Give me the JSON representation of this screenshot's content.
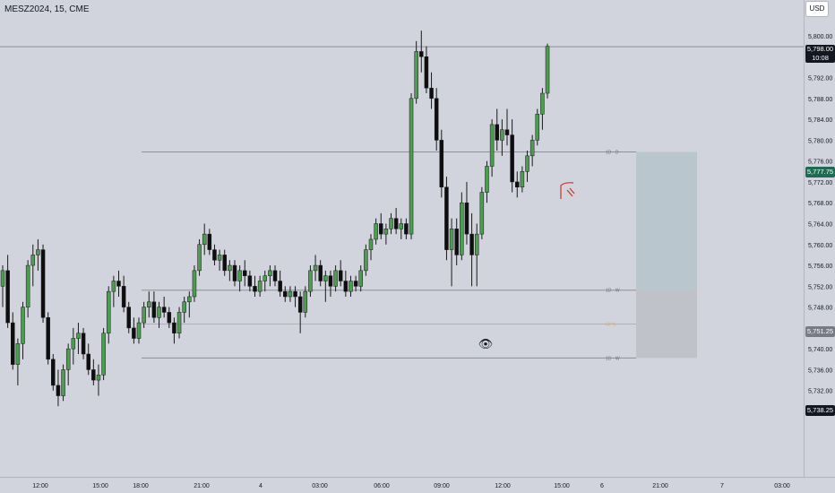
{
  "symbol_title": "MESZ2024, 15, CME",
  "currency_button": "USD",
  "price_axis": {
    "ticks": [
      "5,800.00",
      "5,796.00",
      "5,792.00",
      "5,788.00",
      "5,784.00",
      "5,780.00",
      "5,776.00",
      "5,772.00",
      "5,768.00",
      "5,764.00",
      "5,760.00",
      "5,756.00",
      "5,752.00",
      "5,748.00",
      "5,744.00",
      "5,740.00",
      "5,736.00",
      "5,732.00",
      "5,728.00"
    ]
  },
  "time_axis": {
    "labels": [
      "12:00",
      "15:00",
      "18:00",
      "21:00",
      "4",
      "03:00",
      "06:00",
      "09:00",
      "12:00",
      "15:00",
      "6",
      "21:00",
      "7",
      "03:00"
    ]
  },
  "price_tags": {
    "last_price": "5,798.00",
    "countdown": "10:08",
    "level_high": "5,777.75",
    "level_mid": "5,751.25",
    "level_low": "5,738.25"
  },
  "level_labels": {
    "high": "1D · D",
    "mid": "1D · W",
    "half": "50 %",
    "low": "1D · W"
  },
  "annotations": {
    "eye": "👁"
  },
  "colors": {
    "background": "#d1d4dc",
    "bull": "#4e9b52",
    "bear": "#0e0e10",
    "wick": "#1a1a1a",
    "zone_upper": "#b9c6ce",
    "zone_lower": "#c0c2c9",
    "half_line": "#e6a84f",
    "level_line": "#8d9099"
  },
  "chart_data": {
    "type": "candlestick",
    "x": [
      "12:00",
      "15:00",
      "18:00",
      "21:00",
      "4",
      "03:00",
      "06:00",
      "09:00",
      "12:00",
      "15:00",
      "6",
      "21:00",
      "7",
      "03:00"
    ],
    "ylim": [
      5726,
      5802
    ],
    "last_price": 5798.0,
    "horizontal_levels": [
      5777.75,
      5751.25,
      5744.75,
      5738.25
    ],
    "zone": {
      "top": 5777.75,
      "mid": 5751.25,
      "bottom": 5738.25
    },
    "series": [
      {
        "name": "MESZ2024",
        "ohlc": [
          [
            5752,
            5756,
            5748,
            5755
          ],
          [
            5755,
            5758,
            5744,
            5745
          ],
          [
            5745,
            5747,
            5736,
            5737
          ],
          [
            5737,
            5742,
            5733,
            5741
          ],
          [
            5741,
            5749,
            5738,
            5748
          ],
          [
            5748,
            5757,
            5746,
            5756
          ],
          [
            5756,
            5760,
            5752,
            5758
          ],
          [
            5758,
            5761,
            5755,
            5759
          ],
          [
            5759,
            5760,
            5745,
            5746
          ],
          [
            5746,
            5747,
            5737,
            5738
          ],
          [
            5738,
            5739,
            5732,
            5733
          ],
          [
            5733,
            5736,
            5729,
            5731
          ],
          [
            5731,
            5737,
            5730,
            5736
          ],
          [
            5736,
            5741,
            5733,
            5740
          ],
          [
            5740,
            5744,
            5737,
            5742
          ],
          [
            5742,
            5745,
            5739,
            5743
          ],
          [
            5743,
            5744,
            5738,
            5739
          ],
          [
            5739,
            5741,
            5735,
            5736
          ],
          [
            5736,
            5738,
            5733,
            5734
          ],
          [
            5734,
            5737,
            5731,
            5735
          ],
          [
            5735,
            5744,
            5734,
            5743
          ],
          [
            5743,
            5752,
            5741,
            5751
          ],
          [
            5751,
            5754,
            5748,
            5753
          ],
          [
            5753,
            5755,
            5750,
            5752
          ],
          [
            5752,
            5754,
            5747,
            5748
          ],
          [
            5748,
            5749,
            5743,
            5744
          ],
          [
            5744,
            5746,
            5741,
            5742
          ],
          [
            5742,
            5746,
            5741,
            5745
          ],
          [
            5745,
            5749,
            5744,
            5748
          ],
          [
            5748,
            5751,
            5746,
            5749
          ],
          [
            5749,
            5751,
            5745,
            5746
          ],
          [
            5746,
            5749,
            5744,
            5748
          ],
          [
            5748,
            5750,
            5746,
            5747
          ],
          [
            5747,
            5748,
            5744,
            5745
          ],
          [
            5745,
            5746,
            5741,
            5743
          ],
          [
            5743,
            5748,
            5742,
            5747
          ],
          [
            5747,
            5750,
            5745,
            5749
          ],
          [
            5749,
            5751,
            5746,
            5750
          ],
          [
            5750,
            5756,
            5749,
            5755
          ],
          [
            5755,
            5761,
            5754,
            5760
          ],
          [
            5760,
            5764,
            5758,
            5762
          ],
          [
            5762,
            5763,
            5758,
            5759
          ],
          [
            5759,
            5760,
            5756,
            5757
          ],
          [
            5757,
            5759,
            5755,
            5758
          ],
          [
            5758,
            5759,
            5754,
            5755
          ],
          [
            5755,
            5757,
            5753,
            5756
          ],
          [
            5756,
            5757,
            5752,
            5753
          ],
          [
            5753,
            5756,
            5751,
            5755
          ],
          [
            5755,
            5757,
            5752,
            5754
          ],
          [
            5754,
            5755,
            5751,
            5752
          ],
          [
            5752,
            5754,
            5750,
            5751
          ],
          [
            5751,
            5754,
            5750,
            5753
          ],
          [
            5753,
            5755,
            5751,
            5754
          ],
          [
            5754,
            5756,
            5752,
            5755
          ],
          [
            5755,
            5756,
            5752,
            5753
          ],
          [
            5753,
            5755,
            5750,
            5751
          ],
          [
            5751,
            5752,
            5749,
            5750
          ],
          [
            5750,
            5752,
            5749,
            5751
          ],
          [
            5751,
            5752,
            5748,
            5750
          ],
          [
            5750,
            5751,
            5743,
            5747
          ],
          [
            5747,
            5752,
            5746,
            5751
          ],
          [
            5751,
            5756,
            5750,
            5755
          ],
          [
            5755,
            5758,
            5753,
            5756
          ],
          [
            5756,
            5757,
            5752,
            5753
          ],
          [
            5753,
            5755,
            5749,
            5754
          ],
          [
            5754,
            5755,
            5750,
            5752
          ],
          [
            5752,
            5756,
            5751,
            5755
          ],
          [
            5755,
            5757,
            5752,
            5753
          ],
          [
            5753,
            5755,
            5750,
            5751
          ],
          [
            5751,
            5754,
            5750,
            5753
          ],
          [
            5753,
            5754,
            5751,
            5752
          ],
          [
            5752,
            5756,
            5751,
            5755
          ],
          [
            5755,
            5760,
            5754,
            5759
          ],
          [
            5759,
            5762,
            5757,
            5761
          ],
          [
            5761,
            5765,
            5760,
            5764
          ],
          [
            5764,
            5766,
            5761,
            5762
          ],
          [
            5762,
            5764,
            5760,
            5763
          ],
          [
            5763,
            5766,
            5762,
            5765
          ],
          [
            5765,
            5767,
            5762,
            5763
          ],
          [
            5763,
            5765,
            5761,
            5764
          ],
          [
            5764,
            5765,
            5761,
            5762
          ],
          [
            5762,
            5789,
            5761,
            5788
          ],
          [
            5788,
            5799,
            5787,
            5797
          ],
          [
            5797,
            5801,
            5793,
            5796
          ],
          [
            5796,
            5798,
            5789,
            5790
          ],
          [
            5790,
            5793,
            5786,
            5788
          ],
          [
            5788,
            5790,
            5778,
            5780
          ],
          [
            5780,
            5782,
            5769,
            5771
          ],
          [
            5771,
            5773,
            5757,
            5759
          ],
          [
            5759,
            5765,
            5752,
            5763
          ],
          [
            5763,
            5765,
            5756,
            5758
          ],
          [
            5758,
            5770,
            5757,
            5768
          ],
          [
            5768,
            5772,
            5760,
            5762
          ],
          [
            5762,
            5766,
            5752,
            5758
          ],
          [
            5758,
            5764,
            5752,
            5762
          ],
          [
            5762,
            5771,
            5761,
            5770
          ],
          [
            5770,
            5776,
            5768,
            5775
          ],
          [
            5775,
            5784,
            5773,
            5783
          ],
          [
            5783,
            5786,
            5778,
            5780
          ],
          [
            5780,
            5784,
            5777,
            5782
          ],
          [
            5782,
            5786,
            5779,
            5781
          ],
          [
            5781,
            5784,
            5770,
            5772
          ],
          [
            5772,
            5774,
            5769,
            5771
          ],
          [
            5771,
            5775,
            5770,
            5774
          ],
          [
            5774,
            5778,
            5772,
            5777
          ],
          [
            5777,
            5781,
            5775,
            5780
          ],
          [
            5780,
            5786,
            5779,
            5785
          ],
          [
            5785,
            5790,
            5782,
            5789
          ],
          [
            5789,
            5798.5,
            5788,
            5798
          ]
        ]
      }
    ]
  }
}
